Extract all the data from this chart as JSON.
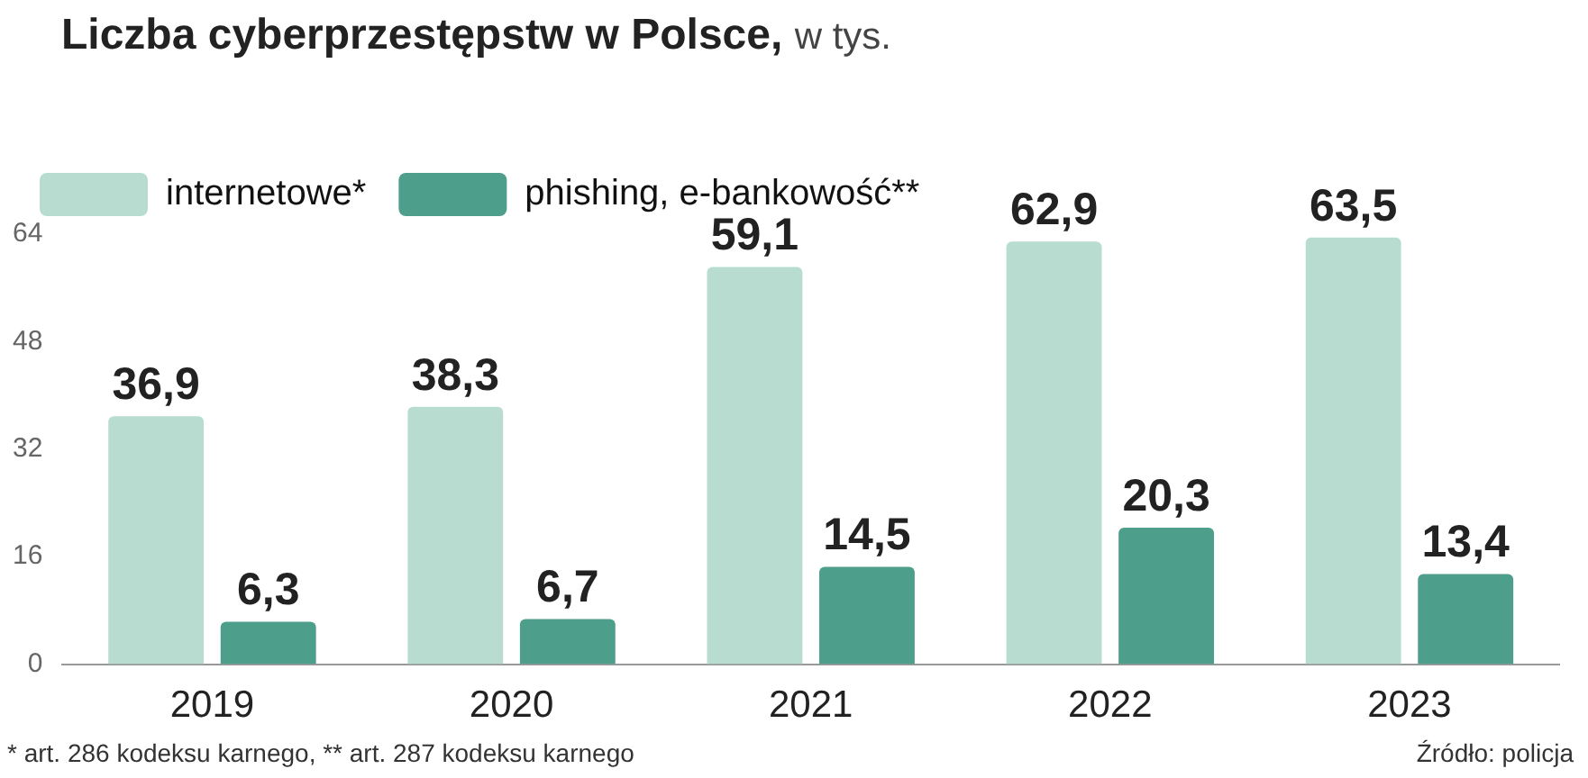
{
  "chart_data": {
    "type": "bar",
    "title": "Liczba cyberprzestępstw w Polsce,",
    "subtitle": "w tys.",
    "categories": [
      "2019",
      "2020",
      "2021",
      "2022",
      "2023"
    ],
    "series": [
      {
        "name": "internetowe*",
        "color": "#b8ddd0",
        "values": [
          36.9,
          38.3,
          59.1,
          62.9,
          63.5
        ],
        "value_labels": [
          "36,9",
          "38,3",
          "59,1",
          "62,9",
          "63,5"
        ]
      },
      {
        "name": "phishing, e-bankowość**",
        "color": "#4e9e8c",
        "values": [
          6.3,
          6.7,
          14.5,
          20.3,
          13.4
        ],
        "value_labels": [
          "6,3",
          "6,7",
          "14,5",
          "20,3",
          "13,4"
        ]
      }
    ],
    "ylim": [
      0,
      64
    ],
    "yticks": [
      0,
      16,
      32,
      48,
      64
    ],
    "grid": false,
    "legend": "top left",
    "annotations": [
      "* art. 286 kodeksu karnego, ** art. 287 kodeksu karnego",
      "Źródło: policja"
    ]
  }
}
